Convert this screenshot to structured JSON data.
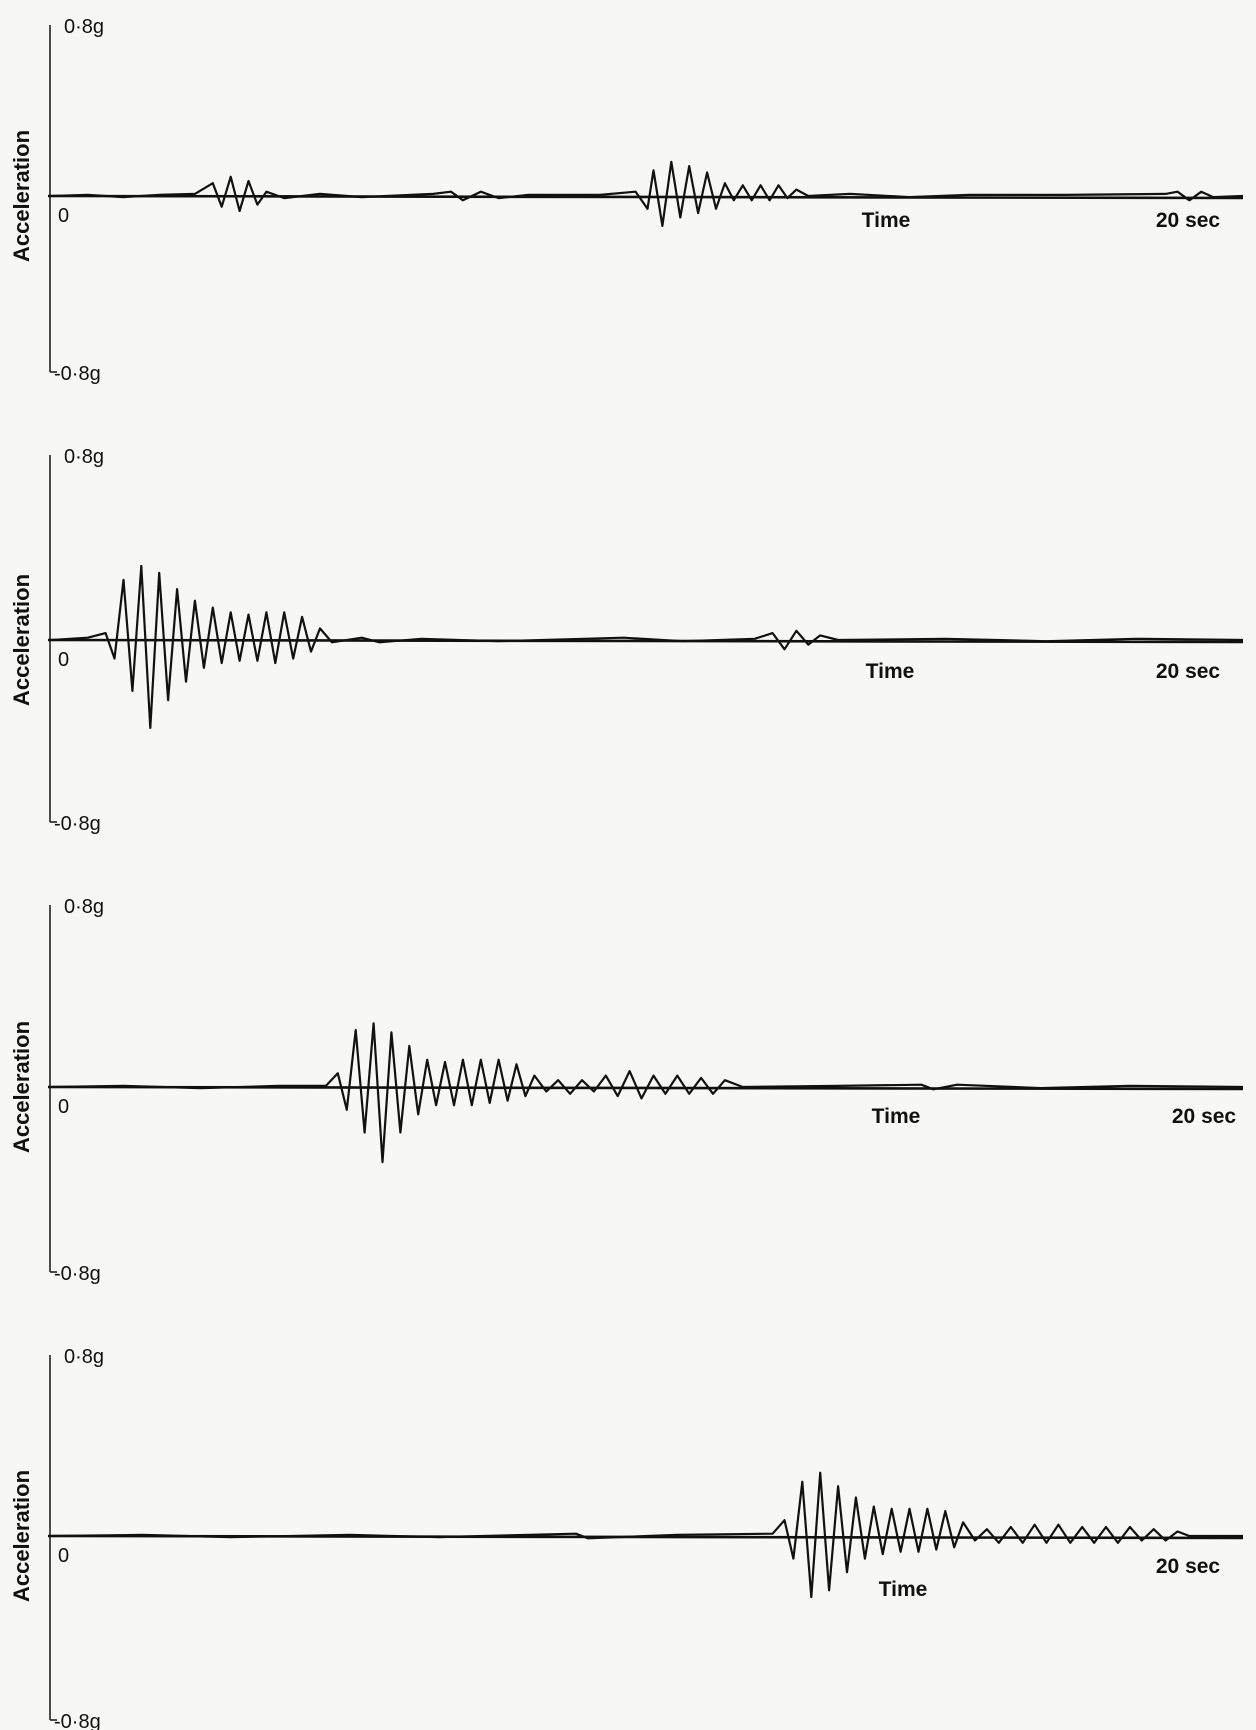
{
  "chart_data": [
    {
      "type": "line",
      "ylabel": "Acceleration",
      "xlabel": "Time",
      "y_top_label": "0·8g",
      "y_bottom_label": "-0·8g",
      "origin_label": "0",
      "x_end_label": "20 sec",
      "xlim": [
        0,
        20
      ],
      "ylim": [
        -0.8,
        0.8
      ],
      "grid": false,
      "series": [
        {
          "values": [
            [
              0,
              0
            ],
            [
              0.6,
              0.005
            ],
            [
              1.2,
              -0.005
            ],
            [
              1.8,
              0.005
            ],
            [
              2.4,
              0.01
            ],
            [
              2.7,
              0.06
            ],
            [
              2.85,
              -0.05
            ],
            [
              3.0,
              0.09
            ],
            [
              3.15,
              -0.07
            ],
            [
              3.3,
              0.07
            ],
            [
              3.45,
              -0.04
            ],
            [
              3.6,
              0.02
            ],
            [
              3.9,
              -0.01
            ],
            [
              4.5,
              0.01
            ],
            [
              5.2,
              -0.005
            ],
            [
              6.4,
              0.01
            ],
            [
              6.7,
              0.02
            ],
            [
              6.9,
              -0.02
            ],
            [
              7.2,
              0.02
            ],
            [
              7.5,
              -0.01
            ],
            [
              8.0,
              0.005
            ],
            [
              9.2,
              0.005
            ],
            [
              9.8,
              0.02
            ],
            [
              10.0,
              -0.06
            ],
            [
              10.1,
              0.12
            ],
            [
              10.25,
              -0.14
            ],
            [
              10.4,
              0.16
            ],
            [
              10.55,
              -0.1
            ],
            [
              10.7,
              0.14
            ],
            [
              10.85,
              -0.08
            ],
            [
              11.0,
              0.11
            ],
            [
              11.15,
              -0.06
            ],
            [
              11.3,
              0.06
            ],
            [
              11.45,
              -0.02
            ],
            [
              11.6,
              0.05
            ],
            [
              11.75,
              -0.02
            ],
            [
              11.9,
              0.05
            ],
            [
              12.05,
              -0.02
            ],
            [
              12.2,
              0.05
            ],
            [
              12.35,
              -0.01
            ],
            [
              12.5,
              0.03
            ],
            [
              12.7,
              0.0
            ],
            [
              13.4,
              0.01
            ],
            [
              14.4,
              -0.005
            ],
            [
              15.4,
              0.005
            ],
            [
              17.0,
              0.005
            ],
            [
              18.7,
              0.01
            ],
            [
              18.9,
              0.02
            ],
            [
              19.1,
              -0.02
            ],
            [
              19.3,
              0.02
            ],
            [
              19.5,
              -0.005
            ],
            [
              20,
              0
            ]
          ]
        }
      ]
    },
    {
      "type": "line",
      "ylabel": "Acceleration",
      "xlabel": "Time",
      "y_top_label": "0·8g",
      "y_bottom_label": "-0·8g",
      "origin_label": "0",
      "x_end_label": "20 sec",
      "xlim": [
        0,
        20
      ],
      "ylim": [
        -0.8,
        0.8
      ],
      "grid": false,
      "series": [
        {
          "values": [
            [
              0,
              0
            ],
            [
              0.6,
              0.01
            ],
            [
              0.9,
              0.03
            ],
            [
              1.05,
              -0.08
            ],
            [
              1.2,
              0.26
            ],
            [
              1.35,
              -0.22
            ],
            [
              1.5,
              0.32
            ],
            [
              1.65,
              -0.38
            ],
            [
              1.8,
              0.29
            ],
            [
              1.95,
              -0.26
            ],
            [
              2.1,
              0.22
            ],
            [
              2.25,
              -0.18
            ],
            [
              2.4,
              0.17
            ],
            [
              2.55,
              -0.12
            ],
            [
              2.7,
              0.14
            ],
            [
              2.85,
              -0.1
            ],
            [
              3.0,
              0.12
            ],
            [
              3.15,
              -0.09
            ],
            [
              3.3,
              0.11
            ],
            [
              3.45,
              -0.09
            ],
            [
              3.6,
              0.12
            ],
            [
              3.75,
              -0.1
            ],
            [
              3.9,
              0.12
            ],
            [
              4.05,
              -0.08
            ],
            [
              4.2,
              0.1
            ],
            [
              4.35,
              -0.05
            ],
            [
              4.5,
              0.05
            ],
            [
              4.7,
              -0.01
            ],
            [
              5.2,
              0.01
            ],
            [
              5.5,
              -0.01
            ],
            [
              6.2,
              0.005
            ],
            [
              7.5,
              -0.005
            ],
            [
              9.6,
              0.01
            ],
            [
              10.6,
              -0.005
            ],
            [
              11.8,
              0.005
            ],
            [
              12.1,
              0.03
            ],
            [
              12.3,
              -0.04
            ],
            [
              12.5,
              0.04
            ],
            [
              12.7,
              -0.02
            ],
            [
              12.9,
              0.02
            ],
            [
              13.2,
              0.0
            ],
            [
              15.0,
              0.005
            ],
            [
              16.7,
              -0.005
            ],
            [
              18.2,
              0.005
            ],
            [
              20,
              0
            ]
          ]
        }
      ]
    },
    {
      "type": "line",
      "ylabel": "Acceleration",
      "xlabel": "Time",
      "y_top_label": "0·8g",
      "y_bottom_label": "-0·8g",
      "origin_label": "0",
      "x_end_label": "20 sec",
      "xlim": [
        0,
        20
      ],
      "ylim": [
        -0.8,
        0.8
      ],
      "grid": false,
      "series": [
        {
          "values": [
            [
              0,
              0
            ],
            [
              1.2,
              0.005
            ],
            [
              2.5,
              -0.005
            ],
            [
              3.8,
              0.005
            ],
            [
              4.6,
              0.005
            ],
            [
              4.8,
              0.06
            ],
            [
              4.95,
              -0.1
            ],
            [
              5.1,
              0.25
            ],
            [
              5.25,
              -0.2
            ],
            [
              5.4,
              0.28
            ],
            [
              5.55,
              -0.33
            ],
            [
              5.7,
              0.24
            ],
            [
              5.85,
              -0.2
            ],
            [
              6.0,
              0.18
            ],
            [
              6.15,
              -0.12
            ],
            [
              6.3,
              0.12
            ],
            [
              6.45,
              -0.08
            ],
            [
              6.6,
              0.11
            ],
            [
              6.75,
              -0.08
            ],
            [
              6.9,
              0.12
            ],
            [
              7.05,
              -0.08
            ],
            [
              7.2,
              0.12
            ],
            [
              7.35,
              -0.07
            ],
            [
              7.5,
              0.12
            ],
            [
              7.65,
              -0.06
            ],
            [
              7.8,
              0.1
            ],
            [
              7.95,
              -0.04
            ],
            [
              8.1,
              0.05
            ],
            [
              8.3,
              -0.02
            ],
            [
              8.5,
              0.03
            ],
            [
              8.7,
              -0.03
            ],
            [
              8.9,
              0.03
            ],
            [
              9.1,
              -0.02
            ],
            [
              9.3,
              0.05
            ],
            [
              9.5,
              -0.04
            ],
            [
              9.7,
              0.07
            ],
            [
              9.9,
              -0.05
            ],
            [
              10.1,
              0.05
            ],
            [
              10.3,
              -0.03
            ],
            [
              10.5,
              0.05
            ],
            [
              10.7,
              -0.03
            ],
            [
              10.9,
              0.04
            ],
            [
              11.1,
              -0.03
            ],
            [
              11.3,
              0.03
            ],
            [
              11.6,
              0.0
            ],
            [
              13.2,
              0.005
            ],
            [
              14.6,
              0.01
            ],
            [
              14.8,
              -0.01
            ],
            [
              15.2,
              0.01
            ],
            [
              16.6,
              -0.005
            ],
            [
              18.1,
              0.005
            ],
            [
              20,
              0
            ]
          ]
        }
      ]
    },
    {
      "type": "line",
      "ylabel": "Acceleration",
      "xlabel": "Time",
      "y_top_label": "0·8g",
      "y_bottom_label": "-0·8g",
      "origin_label": "0",
      "x_end_label": "20 sec",
      "xlim": [
        0,
        20
      ],
      "ylim": [
        -0.8,
        0.8
      ],
      "grid": false,
      "series": [
        {
          "values": [
            [
              0,
              0
            ],
            [
              1.5,
              0.005
            ],
            [
              3.0,
              -0.005
            ],
            [
              5.0,
              0.005
            ],
            [
              6.5,
              -0.005
            ],
            [
              8.8,
              0.01
            ],
            [
              9.0,
              -0.01
            ],
            [
              10.5,
              0.005
            ],
            [
              12.1,
              0.01
            ],
            [
              12.3,
              0.07
            ],
            [
              12.45,
              -0.1
            ],
            [
              12.6,
              0.24
            ],
            [
              12.75,
              -0.27
            ],
            [
              12.9,
              0.28
            ],
            [
              13.05,
              -0.24
            ],
            [
              13.2,
              0.22
            ],
            [
              13.35,
              -0.16
            ],
            [
              13.5,
              0.17
            ],
            [
              13.65,
              -0.1
            ],
            [
              13.8,
              0.13
            ],
            [
              13.95,
              -0.08
            ],
            [
              14.1,
              0.12
            ],
            [
              14.25,
              -0.07
            ],
            [
              14.4,
              0.12
            ],
            [
              14.55,
              -0.07
            ],
            [
              14.7,
              0.12
            ],
            [
              14.85,
              -0.06
            ],
            [
              15.0,
              0.11
            ],
            [
              15.15,
              -0.05
            ],
            [
              15.3,
              0.06
            ],
            [
              15.5,
              -0.02
            ],
            [
              15.7,
              0.03
            ],
            [
              15.9,
              -0.03
            ],
            [
              16.1,
              0.04
            ],
            [
              16.3,
              -0.03
            ],
            [
              16.5,
              0.05
            ],
            [
              16.7,
              -0.03
            ],
            [
              16.9,
              0.05
            ],
            [
              17.1,
              -0.03
            ],
            [
              17.3,
              0.04
            ],
            [
              17.5,
              -0.03
            ],
            [
              17.7,
              0.04
            ],
            [
              17.9,
              -0.03
            ],
            [
              18.1,
              0.04
            ],
            [
              18.3,
              -0.02
            ],
            [
              18.5,
              0.03
            ],
            [
              18.7,
              -0.02
            ],
            [
              18.9,
              0.02
            ],
            [
              19.1,
              0.0
            ],
            [
              20,
              0
            ]
          ]
        }
      ]
    }
  ]
}
